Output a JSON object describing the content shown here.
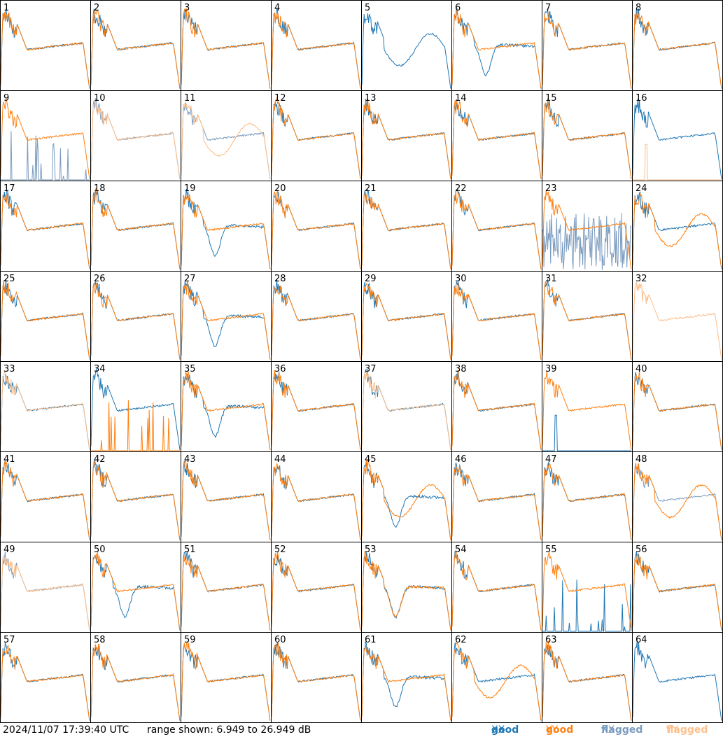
{
  "footer": {
    "timestamp": "2024/11/07 17:39:40 UTC",
    "range": "range shown: 6.949 to 26.949 dB"
  },
  "legend": [
    {
      "key": "good_xx",
      "word": "good",
      "suffix": "XX",
      "color": "#1f77b4"
    },
    {
      "key": "good_yy",
      "word": "good",
      "suffix": "YY",
      "color": "#ff7f0e"
    },
    {
      "key": "flagged_xx",
      "word": "flagged",
      "suffix": "XX",
      "color": "#7a9bbf"
    },
    {
      "key": "flagged_yy",
      "word": "flagged",
      "suffix": "YY",
      "color": "#fdbf8c"
    }
  ],
  "chart_data": {
    "type": "line",
    "grid": [
      8,
      8
    ],
    "y_range_db": [
      6.949,
      26.949
    ],
    "ymax": 26.949,
    "channels_per_panel": 120,
    "panels": [
      {
        "id": "1",
        "xx": "good",
        "yy": "good",
        "xx_shape": "normal",
        "yy_shape": "normal"
      },
      {
        "id": "2",
        "xx": "good",
        "yy": "good",
        "xx_shape": "normal",
        "yy_shape": "normal"
      },
      {
        "id": "3",
        "xx": "good",
        "yy": "good",
        "xx_shape": "normal",
        "yy_shape": "normal"
      },
      {
        "id": "4",
        "xx": "good",
        "yy": "good",
        "xx_shape": "normal",
        "yy_shape": "normal"
      },
      {
        "id": "5",
        "xx": "good",
        "yy": "none",
        "xx_shape": "wave",
        "yy_shape": "none"
      },
      {
        "id": "6",
        "xx": "good",
        "yy": "good",
        "xx_shape": "deep_dip",
        "yy_shape": "normal"
      },
      {
        "id": "7",
        "xx": "good",
        "yy": "good",
        "xx_shape": "normal",
        "yy_shape": "normal"
      },
      {
        "id": "8",
        "xx": "good",
        "yy": "good",
        "xx_shape": "normal",
        "yy_shape": "normal"
      },
      {
        "id": "9",
        "xx": "flagged",
        "yy": "good",
        "xx_shape": "sparse_low",
        "yy_shape": "normal"
      },
      {
        "id": "10",
        "xx": "flagged",
        "yy": "flagged",
        "xx_shape": "normal",
        "yy_shape": "normal"
      },
      {
        "id": "11",
        "xx": "flagged",
        "yy": "flagged",
        "xx_shape": "normal",
        "yy_shape": "wave"
      },
      {
        "id": "12",
        "xx": "good",
        "yy": "good",
        "xx_shape": "normal",
        "yy_shape": "normal"
      },
      {
        "id": "13",
        "xx": "good",
        "yy": "good",
        "xx_shape": "normal",
        "yy_shape": "normal"
      },
      {
        "id": "14",
        "xx": "good",
        "yy": "good",
        "xx_shape": "normal",
        "yy_shape": "normal"
      },
      {
        "id": "15",
        "xx": "good",
        "yy": "good",
        "xx_shape": "normal",
        "yy_shape": "normal"
      },
      {
        "id": "16",
        "xx": "good",
        "yy": "flagged",
        "xx_shape": "normal",
        "yy_shape": "spike"
      },
      {
        "id": "17",
        "xx": "good",
        "yy": "good",
        "xx_shape": "normal",
        "yy_shape": "normal"
      },
      {
        "id": "18",
        "xx": "good",
        "yy": "good",
        "xx_shape": "normal",
        "yy_shape": "normal"
      },
      {
        "id": "19",
        "xx": "good",
        "yy": "good",
        "xx_shape": "deep_dip",
        "yy_shape": "normal"
      },
      {
        "id": "20",
        "xx": "good",
        "yy": "good",
        "xx_shape": "normal",
        "yy_shape": "normal"
      },
      {
        "id": "21",
        "xx": "good",
        "yy": "good",
        "xx_shape": "normal",
        "yy_shape": "normal"
      },
      {
        "id": "22",
        "xx": "good",
        "yy": "good",
        "xx_shape": "normal",
        "yy_shape": "normal"
      },
      {
        "id": "23",
        "xx": "flagged",
        "yy": "good",
        "xx_shape": "noisy",
        "yy_shape": "normal"
      },
      {
        "id": "24",
        "xx": "good",
        "yy": "good",
        "xx_shape": "normal",
        "yy_shape": "wave"
      },
      {
        "id": "25",
        "xx": "good",
        "yy": "good",
        "xx_shape": "normal",
        "yy_shape": "normal"
      },
      {
        "id": "26",
        "xx": "good",
        "yy": "good",
        "xx_shape": "normal",
        "yy_shape": "normal"
      },
      {
        "id": "27",
        "xx": "good",
        "yy": "good",
        "xx_shape": "deep_dip",
        "yy_shape": "normal"
      },
      {
        "id": "28",
        "xx": "good",
        "yy": "good",
        "xx_shape": "normal",
        "yy_shape": "normal"
      },
      {
        "id": "29",
        "xx": "good",
        "yy": "good",
        "xx_shape": "normal",
        "yy_shape": "normal"
      },
      {
        "id": "30",
        "xx": "good",
        "yy": "good",
        "xx_shape": "normal",
        "yy_shape": "normal"
      },
      {
        "id": "31",
        "xx": "good",
        "yy": "good",
        "xx_shape": "normal",
        "yy_shape": "normal"
      },
      {
        "id": "32",
        "xx": "none",
        "yy": "flagged",
        "xx_shape": "none",
        "yy_shape": "normal"
      },
      {
        "id": "33",
        "xx": "good",
        "yy": "flagged",
        "xx_shape": "normal",
        "yy_shape": "normal"
      },
      {
        "id": "34",
        "xx": "good",
        "yy": "good",
        "xx_shape": "normal",
        "yy_shape": "sparse_low"
      },
      {
        "id": "35",
        "xx": "good",
        "yy": "good",
        "xx_shape": "deep_dip",
        "yy_shape": "normal"
      },
      {
        "id": "36",
        "xx": "good",
        "yy": "good",
        "xx_shape": "normal",
        "yy_shape": "normal"
      },
      {
        "id": "37",
        "xx": "good",
        "yy": "flagged",
        "xx_shape": "normal",
        "yy_shape": "normal"
      },
      {
        "id": "38",
        "xx": "good",
        "yy": "good",
        "xx_shape": "normal",
        "yy_shape": "normal"
      },
      {
        "id": "39",
        "xx": "good",
        "yy": "good",
        "xx_shape": "spike",
        "yy_shape": "normal"
      },
      {
        "id": "40",
        "xx": "good",
        "yy": "good",
        "xx_shape": "normal",
        "yy_shape": "normal"
      },
      {
        "id": "41",
        "xx": "good",
        "yy": "good",
        "xx_shape": "normal",
        "yy_shape": "normal"
      },
      {
        "id": "42",
        "xx": "good",
        "yy": "good",
        "xx_shape": "normal",
        "yy_shape": "normal"
      },
      {
        "id": "43",
        "xx": "good",
        "yy": "good",
        "xx_shape": "normal",
        "yy_shape": "normal"
      },
      {
        "id": "44",
        "xx": "good",
        "yy": "good",
        "xx_shape": "normal",
        "yy_shape": "normal"
      },
      {
        "id": "45",
        "xx": "good",
        "yy": "good",
        "xx_shape": "deep_dip",
        "yy_shape": "wave"
      },
      {
        "id": "46",
        "xx": "good",
        "yy": "good",
        "xx_shape": "normal",
        "yy_shape": "normal"
      },
      {
        "id": "47",
        "xx": "good",
        "yy": "good",
        "xx_shape": "normal",
        "yy_shape": "normal"
      },
      {
        "id": "48",
        "xx": "flagged",
        "yy": "good",
        "xx_shape": "normal",
        "yy_shape": "wave"
      },
      {
        "id": "49",
        "xx": "flagged",
        "yy": "flagged",
        "xx_shape": "normal",
        "yy_shape": "normal"
      },
      {
        "id": "50",
        "xx": "good",
        "yy": "good",
        "xx_shape": "deep_dip",
        "yy_shape": "normal"
      },
      {
        "id": "51",
        "xx": "good",
        "yy": "good",
        "xx_shape": "normal",
        "yy_shape": "normal"
      },
      {
        "id": "52",
        "xx": "good",
        "yy": "good",
        "xx_shape": "normal",
        "yy_shape": "normal"
      },
      {
        "id": "53",
        "xx": "good",
        "yy": "good",
        "xx_shape": "deep_dip",
        "yy_shape": "deep_dip"
      },
      {
        "id": "54",
        "xx": "good",
        "yy": "good",
        "xx_shape": "normal",
        "yy_shape": "normal"
      },
      {
        "id": "55",
        "xx": "good",
        "yy": "good",
        "xx_shape": "sparse_low",
        "yy_shape": "normal"
      },
      {
        "id": "56",
        "xx": "good",
        "yy": "good",
        "xx_shape": "normal",
        "yy_shape": "normal"
      },
      {
        "id": "57",
        "xx": "good",
        "yy": "good",
        "xx_shape": "normal",
        "yy_shape": "normal"
      },
      {
        "id": "58",
        "xx": "good",
        "yy": "good",
        "xx_shape": "normal",
        "yy_shape": "normal"
      },
      {
        "id": "59",
        "xx": "good",
        "yy": "good",
        "xx_shape": "normal",
        "yy_shape": "normal"
      },
      {
        "id": "60",
        "xx": "good",
        "yy": "good",
        "xx_shape": "normal",
        "yy_shape": "normal"
      },
      {
        "id": "61",
        "xx": "good",
        "yy": "good",
        "xx_shape": "deep_dip",
        "yy_shape": "normal"
      },
      {
        "id": "62",
        "xx": "good",
        "yy": "good",
        "xx_shape": "normal",
        "yy_shape": "wave"
      },
      {
        "id": "63",
        "xx": "good",
        "yy": "good",
        "xx_shape": "normal",
        "yy_shape": "normal"
      },
      {
        "id": "64",
        "xx": "good",
        "yy": "none",
        "xx_shape": "normal",
        "yy_shape": "none"
      }
    ]
  }
}
